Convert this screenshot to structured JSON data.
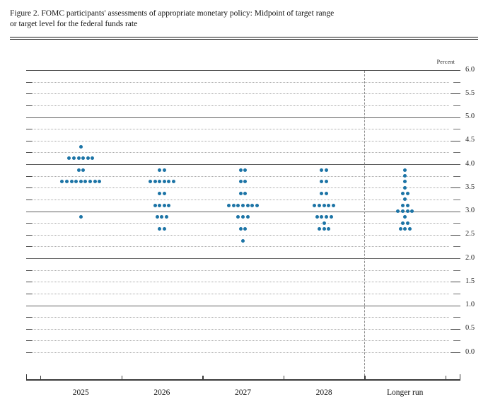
{
  "figure": {
    "title_line1": "Figure 2. FOMC participants' assessments of appropriate monetary policy: Midpoint of target range",
    "title_line2": "or target level for the federal funds rate",
    "unit_label": "Percent"
  },
  "chart_data": {
    "type": "scatter",
    "title": "FOMC participants' assessments of appropriate monetary policy: Midpoint of target range or target level for the federal funds rate",
    "xlabel": "",
    "ylabel": "Percent",
    "ylim": [
      0.0,
      6.0
    ],
    "gridline_step": 0.25,
    "y_label_step": 0.5,
    "grid_on": true,
    "legend_position": "none",
    "y_tick_labels": [
      "6.0",
      "5.5",
      "5.0",
      "4.5",
      "4.0",
      "3.5",
      "3.0",
      "2.5",
      "2.0",
      "1.5",
      "1.0",
      "0.5",
      "0.0"
    ],
    "categories": [
      "2025",
      "2026",
      "2027",
      "2028",
      "Longer run"
    ],
    "separator_before_category": "Longer run",
    "dots_per_column": 19,
    "series": [
      {
        "category": "2025",
        "dots": [
          {
            "rate": 4.375,
            "count": 1
          },
          {
            "rate": 4.125,
            "count": 6
          },
          {
            "rate": 3.875,
            "count": 2
          },
          {
            "rate": 3.625,
            "count": 9
          },
          {
            "rate": 2.875,
            "count": 1
          }
        ]
      },
      {
        "category": "2026",
        "dots": [
          {
            "rate": 3.875,
            "count": 2
          },
          {
            "rate": 3.625,
            "count": 6
          },
          {
            "rate": 3.375,
            "count": 2
          },
          {
            "rate": 3.125,
            "count": 4
          },
          {
            "rate": 2.875,
            "count": 3
          },
          {
            "rate": 2.625,
            "count": 2
          }
        ]
      },
      {
        "category": "2027",
        "dots": [
          {
            "rate": 3.875,
            "count": 2
          },
          {
            "rate": 3.625,
            "count": 2
          },
          {
            "rate": 3.375,
            "count": 2
          },
          {
            "rate": 3.125,
            "count": 7
          },
          {
            "rate": 2.875,
            "count": 3
          },
          {
            "rate": 2.625,
            "count": 2
          },
          {
            "rate": 2.375,
            "count": 1
          }
        ]
      },
      {
        "category": "2028",
        "dots": [
          {
            "rate": 3.875,
            "count": 2
          },
          {
            "rate": 3.625,
            "count": 2
          },
          {
            "rate": 3.375,
            "count": 2
          },
          {
            "rate": 3.125,
            "count": 5
          },
          {
            "rate": 2.875,
            "count": 4
          },
          {
            "rate": 2.75,
            "count": 1
          },
          {
            "rate": 2.625,
            "count": 3
          }
        ]
      },
      {
        "category": "Longer run",
        "dots": [
          {
            "rate": 3.875,
            "count": 1
          },
          {
            "rate": 3.75,
            "count": 1
          },
          {
            "rate": 3.625,
            "count": 1
          },
          {
            "rate": 3.5,
            "count": 1
          },
          {
            "rate": 3.375,
            "count": 2
          },
          {
            "rate": 3.25,
            "count": 1
          },
          {
            "rate": 3.125,
            "count": 2
          },
          {
            "rate": 3.0,
            "count": 4
          },
          {
            "rate": 2.875,
            "count": 1
          },
          {
            "rate": 2.75,
            "count": 2
          },
          {
            "rate": 2.625,
            "count": 3
          }
        ]
      }
    ],
    "colors": {
      "dot": "#1c74a6",
      "solid_grid": "#5f5f5f",
      "dotted_grid": "#a9a9a9",
      "axis": "#3a3a3a"
    }
  }
}
